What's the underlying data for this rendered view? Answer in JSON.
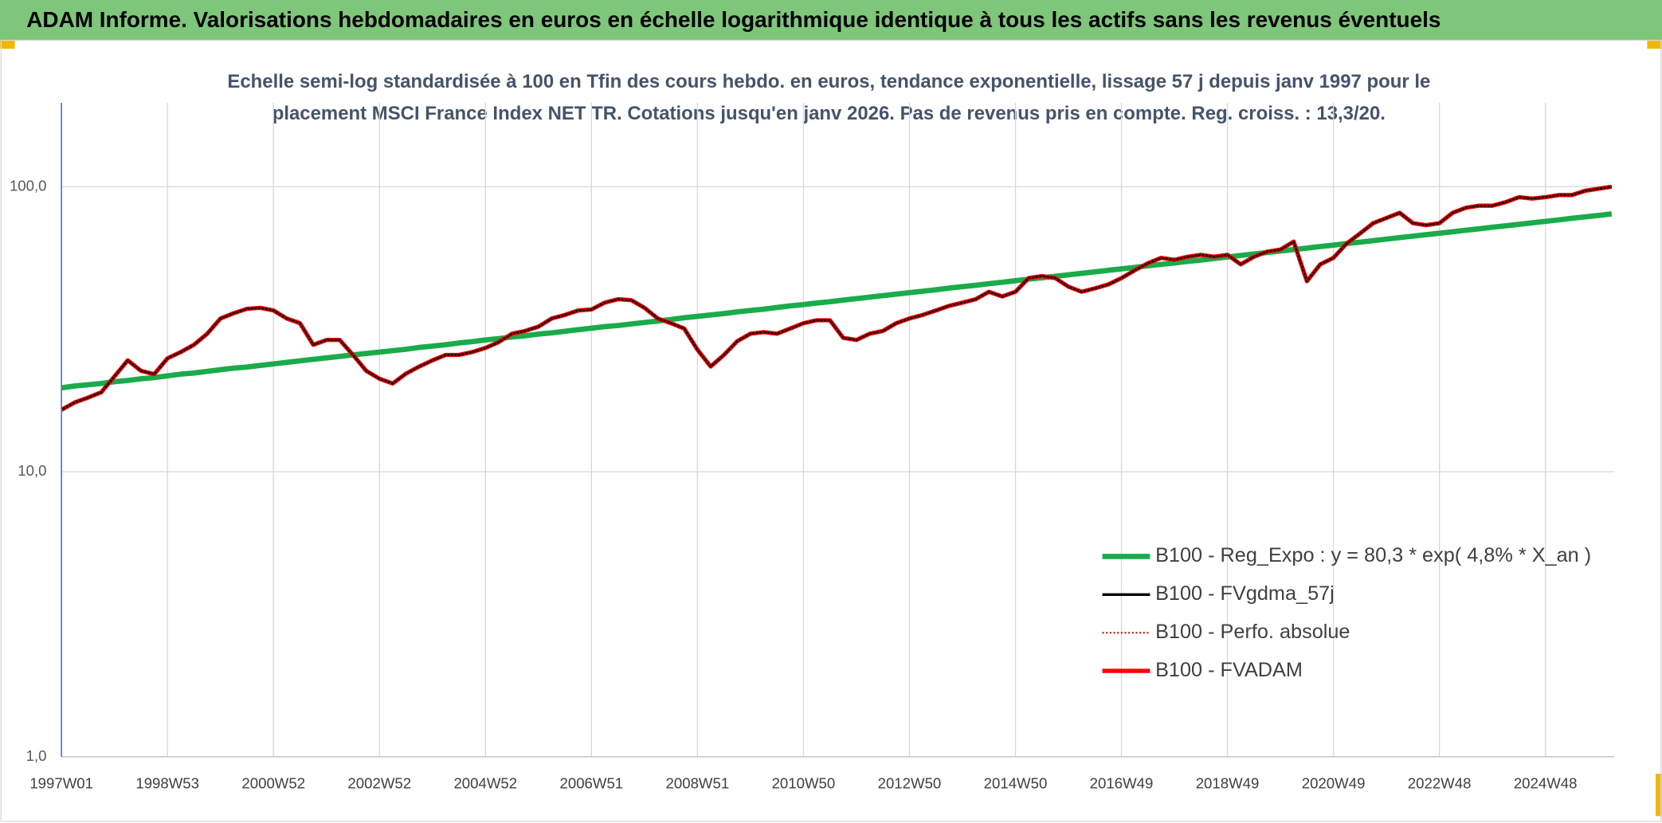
{
  "chart_data": {
    "type": "line",
    "title": "ADAM Informe. Valorisations hebdomadaires en euros en échelle logarithmique identique à tous les actifs sans les revenus éventuels",
    "subtitle": [
      "Echelle semi-log standardisée à 100 en Tfin des cours hebdo. en euros, tendance exponentielle, lissage 57 j depuis janv 1997 pour le",
      "placement MSCI France Index NET TR. Cotations jusqu'en janv 2026. Pas de revenus pris en compte. Reg. croiss. : 13,3/20."
    ],
    "categories": [
      "1997W01",
      null,
      null,
      null,
      null,
      null,
      null,
      null,
      "1998W53",
      null,
      null,
      null,
      null,
      null,
      null,
      null,
      "2000W52",
      null,
      null,
      null,
      null,
      null,
      null,
      null,
      "2002W52",
      null,
      null,
      null,
      null,
      null,
      null,
      null,
      "2004W52",
      null,
      null,
      null,
      null,
      null,
      null,
      null,
      "2006W51",
      null,
      null,
      null,
      null,
      null,
      null,
      null,
      "2008W51",
      null,
      null,
      null,
      null,
      null,
      null,
      null,
      "2010W50",
      null,
      null,
      null,
      null,
      null,
      null,
      null,
      "2012W50",
      null,
      null,
      null,
      null,
      null,
      null,
      null,
      "2014W50",
      null,
      null,
      null,
      null,
      null,
      null,
      null,
      "2016W49",
      null,
      null,
      null,
      null,
      null,
      null,
      null,
      "2018W49",
      null,
      null,
      null,
      null,
      null,
      null,
      null,
      "2020W49",
      null,
      null,
      null,
      null,
      null,
      null,
      null,
      "2022W48",
      null,
      null,
      null,
      null,
      null,
      null,
      null,
      "2024W48",
      null,
      null,
      null,
      null,
      null
    ],
    "series": [
      {
        "name": "B100 - Reg_Expo : y = 80,3 * exp( 4,8% *  X_an )",
        "color": "#1aab4a",
        "line_style": "solid",
        "values": [
          19.7,
          20.0,
          20.2,
          20.4,
          20.7,
          20.9,
          21.2,
          21.4,
          21.7,
          22.0,
          22.2,
          22.5,
          22.8,
          23.1,
          23.3,
          23.6,
          23.9,
          24.2,
          24.5,
          24.8,
          25.1,
          25.4,
          25.7,
          26.0,
          26.3,
          26.6,
          26.9,
          27.3,
          27.6,
          27.9,
          28.3,
          28.6,
          29.0,
          29.3,
          29.7,
          30.0,
          30.4,
          30.7,
          31.1,
          31.5,
          31.9,
          32.3,
          32.6,
          33.0,
          33.4,
          33.8,
          34.2,
          34.7,
          35.1,
          35.5,
          35.9,
          36.4,
          36.8,
          37.2,
          37.7,
          38.2,
          38.6,
          39.1,
          39.5,
          40.0,
          40.5,
          41.0,
          41.5,
          42.0,
          42.5,
          43.0,
          43.5,
          44.1,
          44.6,
          45.1,
          45.7,
          46.2,
          46.8,
          47.4,
          47.9,
          48.5,
          49.1,
          49.7,
          50.3,
          50.9,
          51.5,
          52.1,
          52.8,
          53.4,
          54.0,
          54.7,
          55.3,
          56.0,
          56.7,
          57.4,
          58.1,
          58.8,
          59.5,
          60.2,
          60.9,
          61.7,
          62.4,
          63.2,
          63.9,
          64.7,
          65.5,
          66.3,
          67.1,
          67.9,
          68.7,
          69.5,
          70.4,
          71.2,
          72.1,
          72.9,
          73.8,
          74.7,
          75.6,
          76.5,
          77.5,
          78.4,
          79.3,
          80.3
        ]
      },
      {
        "name": "B100 - FVgdma_57j",
        "color": "#000000",
        "line_style": "solid",
        "values": [
          16.5,
          17.5,
          18.2,
          19.0,
          21.6,
          24.6,
          22.6,
          22.0,
          25.0,
          26.3,
          27.9,
          30.5,
          34.5,
          36.0,
          37.3,
          37.6,
          36.8,
          34.5,
          33.2,
          27.9,
          29.0,
          29.0,
          25.7,
          22.6,
          21.2,
          20.4,
          22.1,
          23.4,
          24.6,
          25.7,
          25.7,
          26.3,
          27.2,
          28.5,
          30.5,
          31.2,
          32.3,
          34.5,
          35.5,
          36.8,
          37.1,
          39.2,
          40.3,
          40.0,
          37.6,
          34.5,
          33.2,
          31.8,
          26.8,
          23.4,
          25.7,
          28.7,
          30.5,
          30.9,
          30.5,
          31.8,
          33.2,
          34.0,
          34.0,
          29.5,
          29.0,
          30.5,
          31.2,
          33.2,
          34.5,
          35.5,
          36.8,
          38.2,
          39.2,
          40.3,
          42.8,
          41.2,
          42.8,
          47.8,
          48.6,
          47.8,
          44.6,
          42.8,
          44.0,
          45.4,
          47.8,
          50.9,
          53.9,
          56.3,
          55.4,
          56.8,
          57.7,
          56.8,
          57.7,
          53.4,
          56.8,
          59.2,
          60.2,
          64.2,
          46.6,
          53.4,
          56.3,
          63.2,
          68.5,
          74.5,
          77.7,
          81.0,
          74.5,
          73.3,
          74.5,
          81.0,
          84.4,
          85.8,
          85.8,
          88.3,
          91.9,
          90.9,
          91.9,
          93.5,
          93.5,
          96.8,
          98.4,
          100.0
        ]
      },
      {
        "name": "B100 - Perfo. absolue",
        "color": "#c00000",
        "line_style": "dotted",
        "values": [
          16.5,
          17.5,
          18.2,
          19.0,
          21.6,
          24.6,
          22.6,
          22.0,
          25.0,
          26.3,
          27.9,
          30.5,
          34.5,
          36.0,
          37.3,
          37.6,
          36.8,
          34.5,
          33.2,
          27.9,
          29.0,
          29.0,
          25.7,
          22.6,
          21.2,
          20.4,
          22.1,
          23.4,
          24.6,
          25.7,
          25.7,
          26.3,
          27.2,
          28.5,
          30.5,
          31.2,
          32.3,
          34.5,
          35.5,
          36.8,
          37.1,
          39.2,
          40.3,
          40.0,
          37.6,
          34.5,
          33.2,
          31.8,
          26.8,
          23.4,
          25.7,
          28.7,
          30.5,
          30.9,
          30.5,
          31.8,
          33.2,
          34.0,
          34.0,
          29.5,
          29.0,
          30.5,
          31.2,
          33.2,
          34.5,
          35.5,
          36.8,
          38.2,
          39.2,
          40.3,
          42.8,
          41.2,
          42.8,
          47.8,
          48.6,
          47.8,
          44.6,
          42.8,
          44.0,
          45.4,
          47.8,
          50.9,
          53.9,
          56.3,
          55.4,
          56.8,
          57.7,
          56.8,
          57.7,
          53.4,
          56.8,
          59.2,
          60.2,
          64.2,
          46.6,
          53.4,
          56.3,
          63.2,
          68.5,
          74.5,
          77.7,
          81.0,
          74.5,
          73.3,
          74.5,
          81.0,
          84.4,
          85.8,
          85.8,
          88.3,
          91.9,
          90.9,
          91.9,
          93.5,
          93.5,
          96.8,
          98.4,
          100.0
        ]
      },
      {
        "name": "B100 - FVADAM",
        "color": "#ff0000",
        "line_style": "solid",
        "values": [
          16.5,
          17.5,
          18.2,
          19.0,
          21.6,
          24.6,
          22.6,
          22.0,
          25.0,
          26.3,
          27.9,
          30.5,
          34.5,
          36.0,
          37.3,
          37.6,
          36.8,
          34.5,
          33.2,
          27.9,
          29.0,
          29.0,
          25.7,
          22.6,
          21.2,
          20.4,
          22.1,
          23.4,
          24.6,
          25.7,
          25.7,
          26.3,
          27.2,
          28.5,
          30.5,
          31.2,
          32.3,
          34.5,
          35.5,
          36.8,
          37.1,
          39.2,
          40.3,
          40.0,
          37.6,
          34.5,
          33.2,
          31.8,
          26.8,
          23.4,
          25.7,
          28.7,
          30.5,
          30.9,
          30.5,
          31.8,
          33.2,
          34.0,
          34.0,
          29.5,
          29.0,
          30.5,
          31.2,
          33.2,
          34.5,
          35.5,
          36.8,
          38.2,
          39.2,
          40.3,
          42.8,
          41.2,
          42.8,
          47.8,
          48.6,
          47.8,
          44.6,
          42.8,
          44.0,
          45.4,
          47.8,
          50.9,
          53.9,
          56.3,
          55.4,
          56.8,
          57.7,
          56.8,
          57.7,
          53.4,
          56.8,
          59.2,
          60.2,
          64.2,
          46.6,
          53.4,
          56.3,
          63.2,
          68.5,
          74.5,
          77.7,
          81.0,
          74.5,
          73.3,
          74.5,
          81.0,
          84.4,
          85.8,
          85.8,
          88.3,
          91.9,
          90.9,
          91.9,
          93.5,
          93.5,
          96.8,
          98.4,
          100.0
        ]
      }
    ],
    "ylim": [
      1,
      197
    ],
    "yticks": [
      {
        "value": 1,
        "label": "1,0"
      },
      {
        "value": 10,
        "label": "10,0"
      },
      {
        "value": 100,
        "label": "100,0"
      }
    ],
    "log_y": true,
    "grid": true,
    "legend": "lower right"
  }
}
